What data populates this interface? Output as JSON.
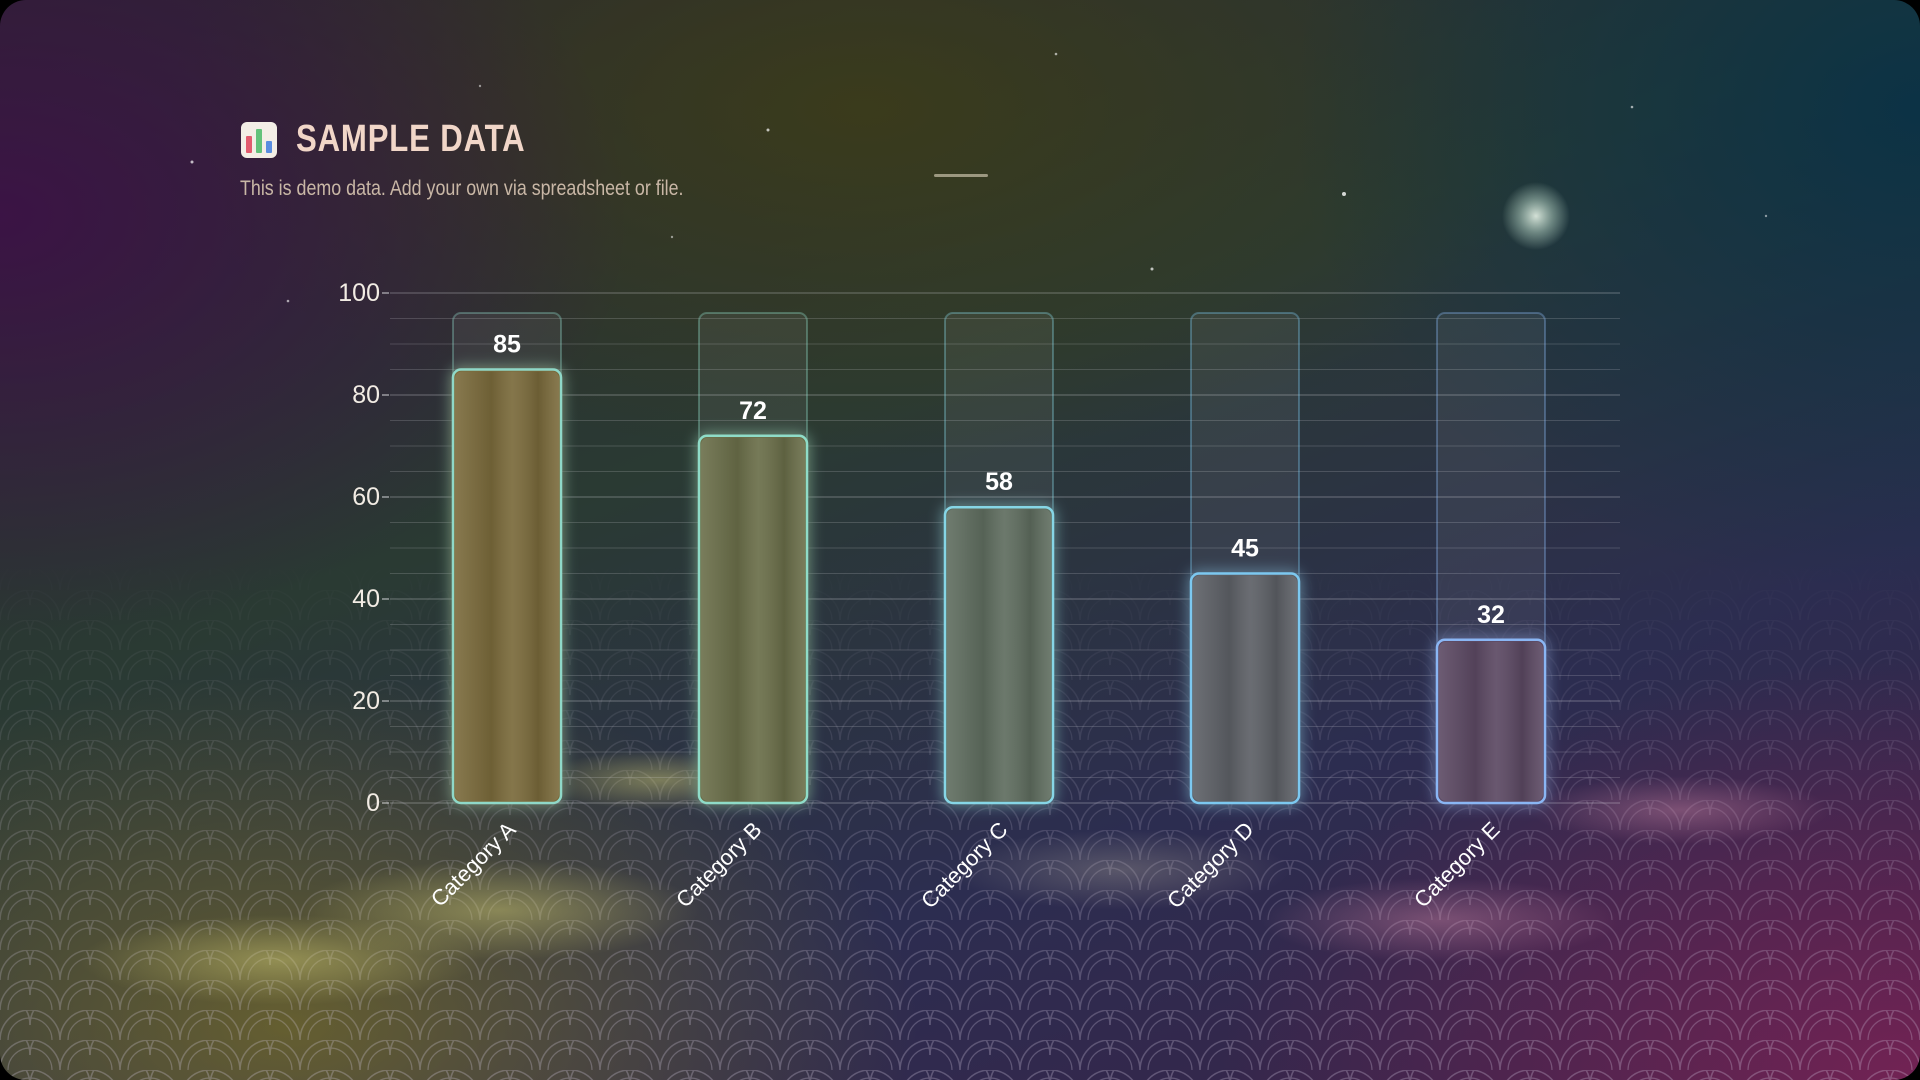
{
  "header": {
    "title": "SAMPLE DATA",
    "subtitle": "This is demo data. Add your own via spreadsheet or file.",
    "icon": "bar-chart-icon"
  },
  "chart_data": {
    "type": "bar",
    "categories": [
      "Category A",
      "Category B",
      "Category C",
      "Category D",
      "Category E"
    ],
    "values": [
      85,
      72,
      58,
      45,
      32
    ],
    "title": "SAMPLE DATA",
    "subtitle": "This is demo data. Add your own via spreadsheet or file.",
    "xlabel": "",
    "ylabel": "",
    "ylim": [
      0,
      100
    ],
    "yticks": [
      0,
      20,
      40,
      60,
      80,
      100
    ],
    "grid": true,
    "legend": "none",
    "bar_colors": [
      "#7a6a3a",
      "#6a6e48",
      "#5f6d5e",
      "#5d6066",
      "#5c4a63"
    ],
    "glow_colors": [
      "#8fd8c8",
      "#8fdcc8",
      "#86d6e6",
      "#7cc8f0",
      "#8ab6f4"
    ]
  }
}
